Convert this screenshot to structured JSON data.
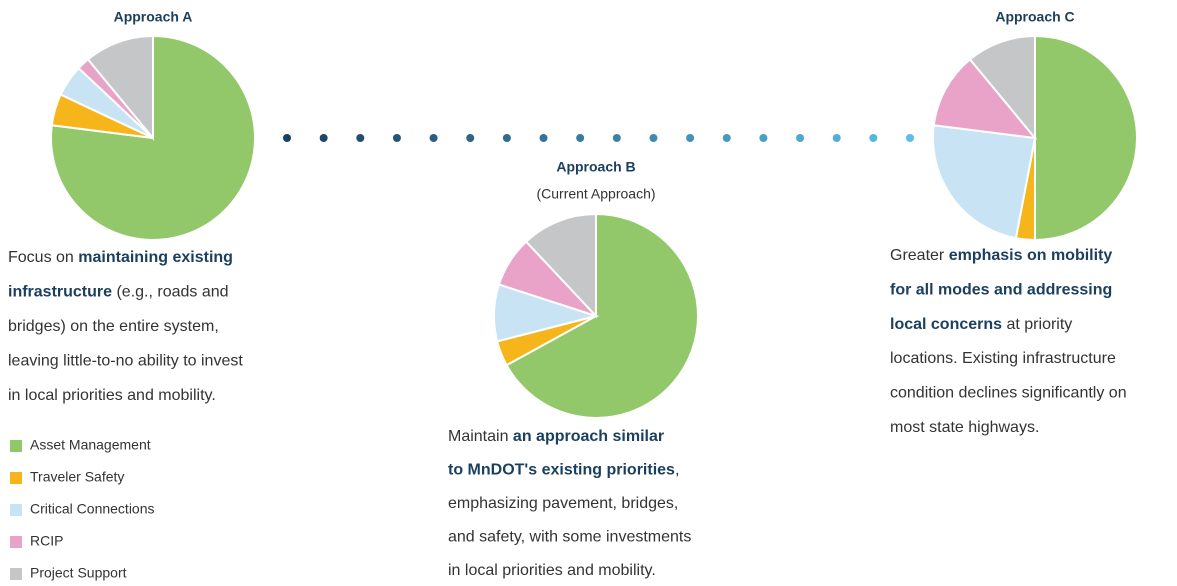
{
  "chart_data": [
    {
      "type": "pie",
      "title": "Approach A",
      "categories": [
        "Asset Management",
        "Traveler Safety",
        "Critical Connections",
        "RCIP",
        "Project Support"
      ],
      "values": [
        77,
        5,
        5,
        2,
        11
      ],
      "colors": [
        "#93c86a",
        "#f7b51c",
        "#c8e3f3",
        "#e9a3c9",
        "#c4c6c8"
      ]
    },
    {
      "type": "pie",
      "title": "Approach B",
      "subtitle": "(Current Approach)",
      "categories": [
        "Asset Management",
        "Traveler Safety",
        "Critical Connections",
        "RCIP",
        "Project Support"
      ],
      "values": [
        67,
        4,
        9,
        8,
        12
      ],
      "colors": [
        "#93c86a",
        "#f7b51c",
        "#c8e3f3",
        "#e9a3c9",
        "#c4c6c8"
      ]
    },
    {
      "type": "pie",
      "title": "Approach C",
      "categories": [
        "Asset Management",
        "Traveler Safety",
        "Critical Connections",
        "RCIP",
        "Project Support"
      ],
      "values": [
        50,
        3,
        24,
        12,
        11
      ],
      "colors": [
        "#93c86a",
        "#f7b51c",
        "#c8e3f3",
        "#e9a3c9",
        "#c4c6c8"
      ]
    }
  ],
  "descriptions": [
    [
      [
        {
          "text": "Focus on "
        },
        {
          "text": "maintaining existing",
          "bold": true
        }
      ],
      [
        {
          "text": "infrastructure",
          "bold": true
        },
        {
          "text": " (e.g., roads and"
        }
      ],
      [
        {
          "text": "bridges) on the entire system,"
        }
      ],
      [
        {
          "text": "leaving little-to-no ability to invest"
        }
      ],
      [
        {
          "text": "in local priorities and mobility."
        }
      ]
    ],
    [
      [
        {
          "text": "Maintain "
        },
        {
          "text": "an approach similar",
          "bold": true
        }
      ],
      [
        {
          "text": "to MnDOT's existing priorities",
          "bold": true
        },
        {
          "text": ","
        }
      ],
      [
        {
          "text": "emphasizing pavement, bridges,"
        }
      ],
      [
        {
          "text": "and safety, with some investments"
        }
      ],
      [
        {
          "text": "in local priorities and mobility."
        }
      ]
    ],
    [
      [
        {
          "text": "Greater "
        },
        {
          "text": "emphasis on mobility",
          "bold": true
        }
      ],
      [
        {
          "text": "for all modes and addressing",
          "bold": true
        }
      ],
      [
        {
          "text": "local concerns",
          "bold": true
        },
        {
          "text": " at priority"
        }
      ],
      [
        {
          "text": "locations. Existing infrastructure"
        }
      ],
      [
        {
          "text": "condition declines significantly on"
        }
      ],
      [
        {
          "text": "most state highways."
        }
      ]
    ]
  ]
}
